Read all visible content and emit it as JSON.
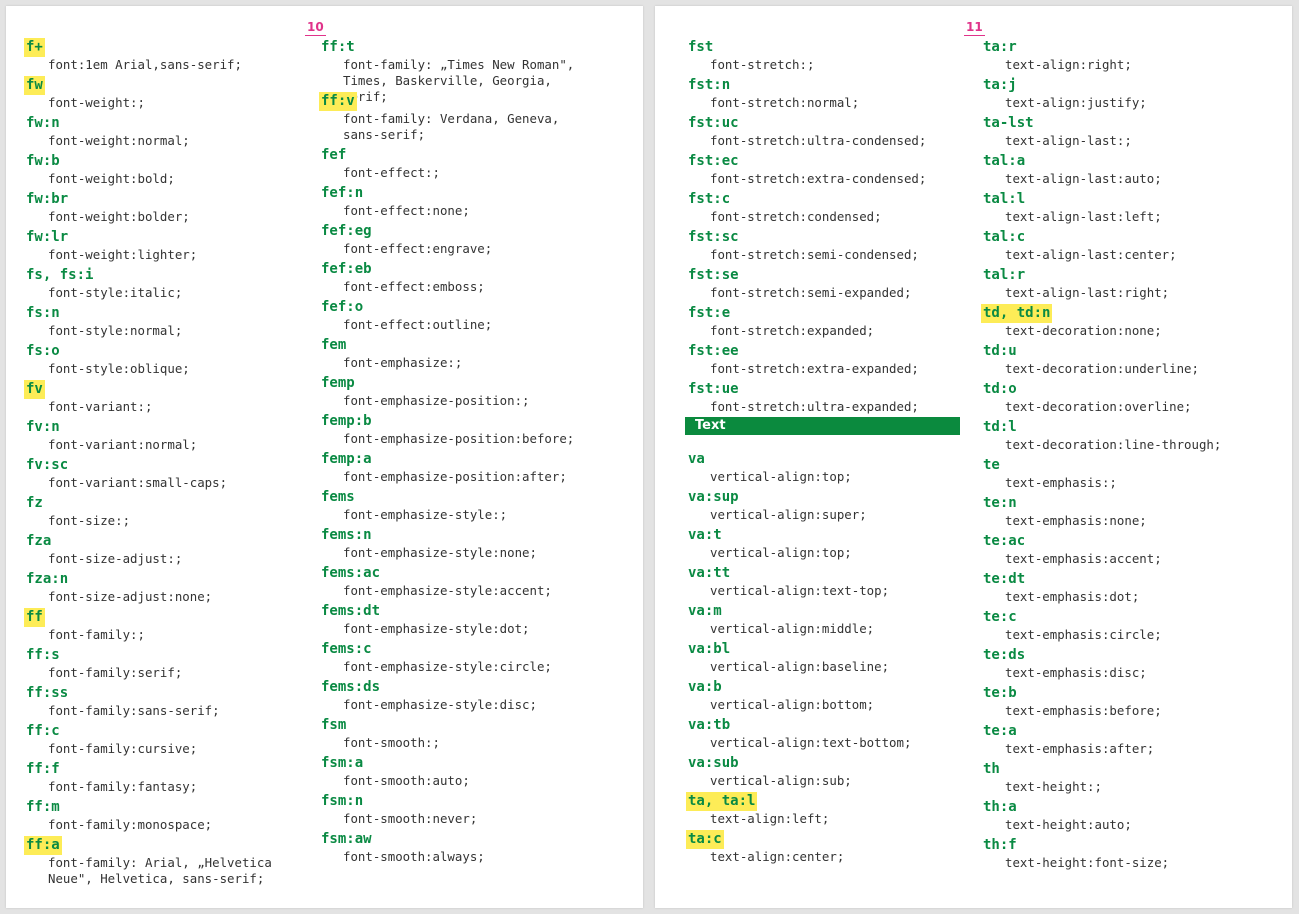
{
  "pages": [
    {
      "number": "10",
      "columns": [
        [
          {
            "abbr": "f+",
            "desc": "font:1em Arial,sans-serif;",
            "hl": true
          },
          {
            "abbr": "fw",
            "desc": "font-weight:;",
            "hl": true
          },
          {
            "abbr": "fw:n",
            "desc": "font-weight:normal;"
          },
          {
            "abbr": "fw:b",
            "desc": "font-weight:bold;"
          },
          {
            "abbr": "fw:br",
            "desc": "font-weight:bolder;"
          },
          {
            "abbr": "fw:lr",
            "desc": "font-weight:lighter;"
          },
          {
            "abbr": "fs, fs:i",
            "desc": "font-style:italic;"
          },
          {
            "abbr": "fs:n",
            "desc": "font-style:normal;"
          },
          {
            "abbr": "fs:o",
            "desc": "font-style:oblique;"
          },
          {
            "abbr": "fv",
            "desc": "font-variant:;",
            "hl": true
          },
          {
            "abbr": "fv:n",
            "desc": "font-variant:normal;"
          },
          {
            "abbr": "fv:sc",
            "desc": "font-variant:small-caps;"
          },
          {
            "abbr": "fz",
            "desc": "font-size:;"
          },
          {
            "abbr": "fza",
            "desc": "font-size-adjust:;"
          },
          {
            "abbr": "fza:n",
            "desc": "font-size-adjust:none;"
          },
          {
            "abbr": "ff",
            "desc": "font-family:;",
            "hl": true
          },
          {
            "abbr": "ff:s",
            "desc": "font-family:serif;"
          },
          {
            "abbr": "ff:ss",
            "desc": "font-family:sans-serif;"
          },
          {
            "abbr": "ff:c",
            "desc": "font-family:cursive;"
          },
          {
            "abbr": "ff:f",
            "desc": "font-family:fantasy;"
          },
          {
            "abbr": "ff:m",
            "desc": "font-family:monospace;"
          },
          {
            "abbr": "ff:a",
            "desc": "font-family: Arial, „Helvetica\nNeue\", Helvetica, sans-serif;",
            "hl": true
          }
        ],
        [
          {
            "abbr": "ff:t",
            "desc": "font-family: „Times New Roman\",\nTimes, Baskerville, Georgia, serif;"
          },
          {
            "abbr": "ff:v",
            "desc": "font-family: Verdana, Geneva,\nsans-serif;",
            "hl": true
          },
          {
            "abbr": "fef",
            "desc": "font-effect:;"
          },
          {
            "abbr": "fef:n",
            "desc": "font-effect:none;"
          },
          {
            "abbr": "fef:eg",
            "desc": "font-effect:engrave;"
          },
          {
            "abbr": "fef:eb",
            "desc": "font-effect:emboss;"
          },
          {
            "abbr": "fef:o",
            "desc": "font-effect:outline;"
          },
          {
            "abbr": "fem",
            "desc": "font-emphasize:;"
          },
          {
            "abbr": "femp",
            "desc": "font-emphasize-position:;"
          },
          {
            "abbr": "femp:b",
            "desc": "font-emphasize-position:before;"
          },
          {
            "abbr": "femp:a",
            "desc": "font-emphasize-position:after;"
          },
          {
            "abbr": "fems",
            "desc": "font-emphasize-style:;"
          },
          {
            "abbr": "fems:n",
            "desc": "font-emphasize-style:none;"
          },
          {
            "abbr": "fems:ac",
            "desc": "font-emphasize-style:accent;"
          },
          {
            "abbr": "fems:dt",
            "desc": "font-emphasize-style:dot;"
          },
          {
            "abbr": "fems:c",
            "desc": "font-emphasize-style:circle;"
          },
          {
            "abbr": "fems:ds",
            "desc": "font-emphasize-style:disc;"
          },
          {
            "abbr": "fsm",
            "desc": "font-smooth:;"
          },
          {
            "abbr": "fsm:a",
            "desc": "font-smooth:auto;"
          },
          {
            "abbr": "fsm:n",
            "desc": "font-smooth:never;"
          },
          {
            "abbr": "fsm:aw",
            "desc": "font-smooth:always;"
          }
        ]
      ]
    },
    {
      "number": "11",
      "columns": [
        [
          {
            "abbr": "fst",
            "desc": "font-stretch:;"
          },
          {
            "abbr": "fst:n",
            "desc": "font-stretch:normal;"
          },
          {
            "abbr": "fst:uc",
            "desc": "font-stretch:ultra-condensed;"
          },
          {
            "abbr": "fst:ec",
            "desc": "font-stretch:extra-condensed;"
          },
          {
            "abbr": "fst:c",
            "desc": "font-stretch:condensed;"
          },
          {
            "abbr": "fst:sc",
            "desc": "font-stretch:semi-condensed;"
          },
          {
            "abbr": "fst:se",
            "desc": "font-stretch:semi-expanded;"
          },
          {
            "abbr": "fst:e",
            "desc": "font-stretch:expanded;"
          },
          {
            "abbr": "fst:ee",
            "desc": "font-stretch:extra-expanded;"
          },
          {
            "abbr": "fst:ue",
            "desc": "font-stretch:ultra-expanded;"
          },
          {
            "section": "Text"
          },
          {
            "abbr": "va",
            "desc": "vertical-align:top;"
          },
          {
            "abbr": "va:sup",
            "desc": "vertical-align:super;"
          },
          {
            "abbr": "va:t",
            "desc": "vertical-align:top;"
          },
          {
            "abbr": "va:tt",
            "desc": "vertical-align:text-top;"
          },
          {
            "abbr": "va:m",
            "desc": "vertical-align:middle;"
          },
          {
            "abbr": "va:bl",
            "desc": "vertical-align:baseline;"
          },
          {
            "abbr": "va:b",
            "desc": "vertical-align:bottom;"
          },
          {
            "abbr": "va:tb",
            "desc": "vertical-align:text-bottom;"
          },
          {
            "abbr": "va:sub",
            "desc": "vertical-align:sub;"
          },
          {
            "abbr": "ta, ta:l",
            "desc": "text-align:left;",
            "hl": true
          },
          {
            "abbr": "ta:c",
            "desc": "text-align:center;",
            "hl": true
          }
        ],
        [
          {
            "abbr": "ta:r",
            "desc": "text-align:right;"
          },
          {
            "abbr": "ta:j",
            "desc": "text-align:justify;"
          },
          {
            "abbr": "ta-lst",
            "desc": "text-align-last:;"
          },
          {
            "abbr": "tal:a",
            "desc": "text-align-last:auto;"
          },
          {
            "abbr": "tal:l",
            "desc": "text-align-last:left;"
          },
          {
            "abbr": "tal:c",
            "desc": "text-align-last:center;"
          },
          {
            "abbr": "tal:r",
            "desc": "text-align-last:right;"
          },
          {
            "abbr": "td, td:n",
            "desc": "text-decoration:none;",
            "hl": true
          },
          {
            "abbr": "td:u",
            "desc": "text-decoration:underline;"
          },
          {
            "abbr": "td:o",
            "desc": "text-decoration:overline;"
          },
          {
            "abbr": "td:l",
            "desc": "text-decoration:line-through;"
          },
          {
            "abbr": "te",
            "desc": "text-emphasis:;"
          },
          {
            "abbr": "te:n",
            "desc": "text-emphasis:none;"
          },
          {
            "abbr": "te:ac",
            "desc": "text-emphasis:accent;"
          },
          {
            "abbr": "te:dt",
            "desc": "text-emphasis:dot;"
          },
          {
            "abbr": "te:c",
            "desc": "text-emphasis:circle;"
          },
          {
            "abbr": "te:ds",
            "desc": "text-emphasis:disc;"
          },
          {
            "abbr": "te:b",
            "desc": "text-emphasis:before;"
          },
          {
            "abbr": "te:a",
            "desc": "text-emphasis:after;"
          },
          {
            "abbr": "th",
            "desc": "text-height:;"
          },
          {
            "abbr": "th:a",
            "desc": "text-height:auto;"
          },
          {
            "abbr": "th:f",
            "desc": "text-height:font-size;"
          }
        ]
      ]
    }
  ],
  "colors": {
    "abbr": "#0a8a43",
    "highlight": "#fdec57",
    "section": "#0b8a3e",
    "page_number": "#e0338a"
  }
}
